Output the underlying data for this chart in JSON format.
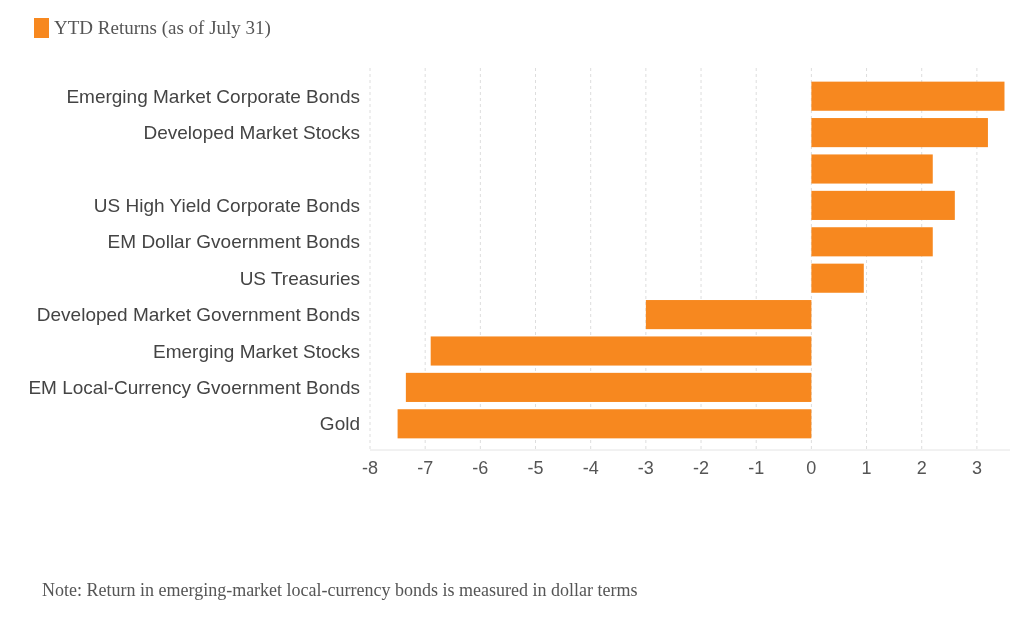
{
  "chart_data": {
    "type": "bar",
    "orientation": "horizontal",
    "categories": [
      "Emerging Market Corporate Bonds",
      "Developed Market Stocks",
      null,
      "US High Yield Corporate Bonds",
      "EM Dollar Gvoernment Bonds",
      "US Treasuries",
      "Developed Market Government Bonds",
      "Emerging Market Stocks",
      "EM Local-Currency Gvoernment Bonds",
      "Gold"
    ],
    "series": [
      {
        "name": "YTD Returns (as of July 31)",
        "color": "#f7881f",
        "values": [
          3.5,
          3.2,
          2.2,
          2.6,
          2.2,
          0.95,
          -3.0,
          -6.9,
          -7.35,
          -7.5
        ]
      }
    ],
    "xlim": [
      -8,
      3.6
    ],
    "xticks": [
      -8,
      -7,
      -6,
      -5,
      -4,
      -3,
      -2,
      -1,
      0,
      1,
      2,
      3
    ],
    "grid": "x",
    "legend": "top left",
    "annotations": [
      "Note: Return in emerging-market local-currency bonds is measured in dollar terms"
    ]
  }
}
